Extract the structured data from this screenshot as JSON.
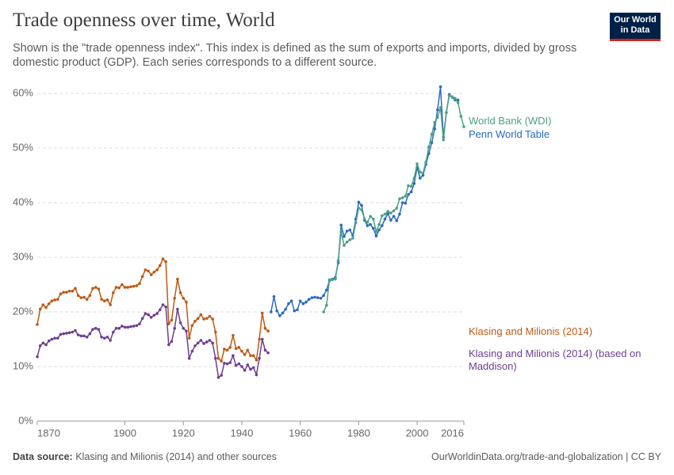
{
  "header": {
    "title": "Trade openness over time, World",
    "subtitle": "Shown is the \"trade openness index\". This index is defined as the sum of exports and imports, divided by gross domestic product (GDP). Each series corresponds to a different source.",
    "logo": "Our World in Data"
  },
  "chart_data": {
    "type": "line",
    "xlim": [
      1870,
      2016
    ],
    "xticks": [
      1870,
      1900,
      1920,
      1940,
      1960,
      1980,
      2000,
      2016
    ],
    "ylim": [
      0,
      60
    ],
    "yticks": [
      {
        "value": 0,
        "label": "0%"
      },
      {
        "value": 10,
        "label": "10%"
      },
      {
        "value": 20,
        "label": "20%"
      },
      {
        "value": 30,
        "label": "30%"
      },
      {
        "value": 40,
        "label": "40%"
      },
      {
        "value": 50,
        "label": "50%"
      },
      {
        "value": 60,
        "label": "60%"
      }
    ],
    "grid": true,
    "series": [
      {
        "name": "Klasing and Milionis (2014)",
        "color": "#be5915",
        "x": [
          1870,
          1871,
          1872,
          1873,
          1874,
          1875,
          1876,
          1877,
          1878,
          1879,
          1880,
          1881,
          1882,
          1883,
          1884,
          1885,
          1886,
          1887,
          1888,
          1889,
          1890,
          1891,
          1892,
          1893,
          1894,
          1895,
          1896,
          1897,
          1898,
          1899,
          1900,
          1901,
          1902,
          1903,
          1904,
          1905,
          1906,
          1907,
          1908,
          1909,
          1910,
          1911,
          1912,
          1913,
          1914,
          1915,
          1916,
          1917,
          1918,
          1919,
          1920,
          1921,
          1922,
          1923,
          1924,
          1925,
          1926,
          1927,
          1928,
          1929,
          1930,
          1931,
          1932,
          1933,
          1934,
          1935,
          1936,
          1937,
          1938,
          1939,
          1940,
          1941,
          1942,
          1943,
          1944,
          1945,
          1946,
          1947,
          1948,
          1949
        ],
        "values": [
          17.7,
          20.5,
          21.3,
          20.8,
          21.5,
          22,
          22.2,
          22.3,
          23.3,
          23.6,
          23.6,
          23.8,
          23.8,
          24.3,
          23,
          22.6,
          22.7,
          22.3,
          23,
          24.3,
          24.5,
          24.2,
          22.3,
          22,
          22.2,
          21.3,
          23.5,
          24.5,
          24.4,
          25,
          24.5,
          24.5,
          24.6,
          24.7,
          24.8,
          25.2,
          26.5,
          27.7,
          27.5,
          26.8,
          27.3,
          27.7,
          28.5,
          29.7,
          29.2,
          17.8,
          18.5,
          22.5,
          26,
          23.5,
          22.5,
          21.8,
          15.2,
          17.5,
          18.3,
          18.8,
          19.5,
          18.7,
          18.8,
          19.2,
          18.7,
          16.3,
          11.5,
          11,
          13.2,
          13,
          13.5,
          15.7,
          13.3,
          13.5,
          12.8,
          12.2,
          13,
          12,
          12,
          11.2,
          15,
          19.8,
          17,
          16.5
        ]
      },
      {
        "name": "Klasing and Milionis (2014) (based on Maddison)",
        "color": "#6d3e91",
        "x": [
          1870,
          1871,
          1872,
          1873,
          1874,
          1875,
          1876,
          1877,
          1878,
          1879,
          1880,
          1881,
          1882,
          1883,
          1884,
          1885,
          1886,
          1887,
          1888,
          1889,
          1890,
          1891,
          1892,
          1893,
          1894,
          1895,
          1896,
          1897,
          1898,
          1899,
          1900,
          1901,
          1902,
          1903,
          1904,
          1905,
          1906,
          1907,
          1908,
          1909,
          1910,
          1911,
          1912,
          1913,
          1914,
          1915,
          1916,
          1917,
          1918,
          1919,
          1920,
          1921,
          1922,
          1923,
          1924,
          1925,
          1926,
          1927,
          1928,
          1929,
          1930,
          1931,
          1932,
          1933,
          1934,
          1935,
          1936,
          1937,
          1938,
          1939,
          1940,
          1941,
          1942,
          1943,
          1944,
          1945,
          1946,
          1947,
          1948,
          1949
        ],
        "values": [
          11.8,
          13.8,
          14.3,
          14,
          14.7,
          15,
          15.2,
          15.2,
          15.9,
          16,
          16.1,
          16.2,
          16.3,
          16.6,
          15.8,
          15.6,
          15.6,
          15.4,
          16,
          16.8,
          17,
          16.8,
          15.4,
          15.2,
          15.4,
          14.8,
          16.3,
          17,
          17,
          17.4,
          17.2,
          17.2,
          17.3,
          17.4,
          17.5,
          17.8,
          18.8,
          19.7,
          19.5,
          19,
          19.4,
          19.7,
          20.4,
          21.3,
          20.9,
          14,
          14.6,
          17,
          20.5,
          18,
          17,
          16.5,
          11.5,
          12.8,
          13.8,
          14.3,
          14.8,
          14.2,
          14.5,
          14.8,
          14.3,
          11.5,
          8,
          8.4,
          10.6,
          10.5,
          10.7,
          12,
          10.2,
          10.5,
          10,
          9.3,
          10.3,
          9.5,
          9.8,
          8.5,
          11.5,
          15,
          13,
          12.5
        ]
      },
      {
        "name": "Penn World Table",
        "color": "#286bbb",
        "x": [
          1950,
          1951,
          1952,
          1953,
          1954,
          1955,
          1956,
          1957,
          1958,
          1959,
          1960,
          1961,
          1962,
          1963,
          1964,
          1965,
          1966,
          1967,
          1968,
          1969,
          1970,
          1971,
          1972,
          1973,
          1974,
          1975,
          1976,
          1977,
          1978,
          1979,
          1980,
          1981,
          1982,
          1983,
          1984,
          1985,
          1986,
          1987,
          1988,
          1989,
          1990,
          1991,
          1992,
          1993,
          1994,
          1995,
          1996,
          1997,
          1998,
          1999,
          2000,
          2001,
          2002,
          2003,
          2004,
          2005,
          2006,
          2007,
          2008,
          2009,
          2010,
          2011,
          2012,
          2013,
          2014
        ],
        "values": [
          20,
          22.8,
          20.2,
          19.3,
          19.8,
          20.5,
          21.5,
          22,
          20.2,
          20.4,
          22,
          21.5,
          21.8,
          22.3,
          22.6,
          22.7,
          22.6,
          22.5,
          23,
          24,
          25.7,
          26,
          26.3,
          29,
          35.9,
          33.8,
          34.8,
          35,
          34,
          37,
          40.1,
          39.5,
          36.8,
          35.8,
          36,
          35.3,
          33.9,
          35,
          35.8,
          37,
          38,
          36.8,
          37.5,
          36.7,
          37.9,
          40,
          39.9,
          41.5,
          42,
          43.5,
          46.5,
          44.5,
          45,
          47,
          49,
          51,
          53.5,
          57,
          61.2,
          52,
          56.5,
          59.8,
          59.3,
          58.8,
          58.8
        ]
      },
      {
        "name": "World Bank (WDI)",
        "color": "#4c9f8a",
        "x": [
          1968,
          1969,
          1970,
          1971,
          1972,
          1973,
          1974,
          1975,
          1976,
          1977,
          1978,
          1979,
          1980,
          1981,
          1982,
          1983,
          1984,
          1985,
          1986,
          1987,
          1988,
          1989,
          1990,
          1991,
          1992,
          1993,
          1994,
          1995,
          1996,
          1997,
          1998,
          1999,
          2000,
          2001,
          2002,
          2003,
          2004,
          2005,
          2006,
          2007,
          2008,
          2009,
          2010,
          2011,
          2012,
          2013,
          2014,
          2015,
          2016
        ],
        "values": [
          20,
          21.2,
          25.9,
          25.9,
          26,
          29.4,
          34.7,
          32.2,
          32.8,
          33.2,
          33.5,
          36.3,
          39,
          38.7,
          37,
          36.4,
          37.5,
          37,
          34.7,
          36,
          37.6,
          37.9,
          38.4,
          38.1,
          38.5,
          39,
          40.7,
          40.9,
          41.2,
          43.1,
          43,
          44.5,
          47.1,
          45.6,
          45.4,
          47.4,
          50.2,
          52.5,
          54.7,
          55.6,
          57.4,
          51.5,
          56.5,
          59.6,
          59.4,
          59.1,
          58.3,
          55.8,
          53.9
        ]
      }
    ]
  },
  "footer": {
    "source_label": "Data source:",
    "source": "Klasing and Milionis (2014) and other sources",
    "url": "OurWorldinData.org/trade-and-globalization | CC BY"
  }
}
